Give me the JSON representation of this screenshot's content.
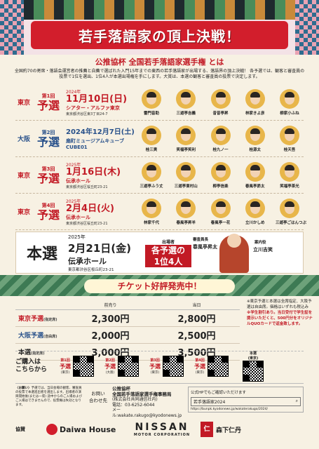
{
  "header": {
    "title": "若手落語家の頂上決戦！"
  },
  "intro": {
    "heading": "公推協杯 全国若手落語家選手権 とは",
    "body": "全国約70の寄席・落語会運営者の推薦と自薦で選ばれた入門15年までの東西の若手落語家が出場する、落語界の頂上決戦！ 各予選では、観客と審査員の投票で1位を選出、1位4人が本選出場権を手にします。大賞は、本選の観客と審査員の投票で決定します。"
  },
  "prelims": [
    {
      "region": "東京",
      "num": "第1回",
      "label": "予選",
      "year": "2024年",
      "date": "11月10日(日)",
      "venue": "シアター・アルファ東京",
      "addr": "東京都渋谷区東3丁目24-7",
      "players": [
        "雷門音助",
        "三遊亭吉義",
        "昔昔亭昇",
        "林家きよ彦",
        "柳家小ふね"
      ]
    },
    {
      "region": "大阪",
      "num": "第2回",
      "label": "予選",
      "year": "",
      "date": "2024年12月7日(土)",
      "venue": "扇町ミュージアムキューブ CUBE01",
      "addr": "",
      "players": [
        "桂三実",
        "笑福亭笑利",
        "桂九ノ一",
        "桂源太",
        "桂天吾"
      ]
    },
    {
      "region": "東京",
      "num": "第3回",
      "label": "予選",
      "year": "2025年",
      "date": "1月16日(木)",
      "venue": "伝承ホール",
      "addr": "東京都渋谷区桜丘町23-21",
      "players": [
        "三遊亭ふう丈",
        "三遊亭東村山",
        "柳亭信楽",
        "春風亭昴太",
        "笑福亭茶光"
      ]
    },
    {
      "region": "東京",
      "num": "第4回",
      "label": "予選",
      "year": "2025年",
      "date": "2月4日(火)",
      "venue": "伝承ホール",
      "addr": "東京都渋谷区桜丘町23-21",
      "players": [
        "林家千代",
        "春風亭昇羊",
        "春風亭一花",
        "立川かしめ",
        "三遊亭ごはんつぶ"
      ]
    }
  ],
  "final": {
    "label": "本選",
    "year": "2025年",
    "date": "2月21日(金)",
    "venue": "伝承ホール",
    "addr": "東京都渋谷区桜丘町23-21",
    "lead_caption": "出場者",
    "lead_highlight_1": "各予選の",
    "lead_highlight_2": "1位4人",
    "judge_label": "審査員長",
    "judge_name": "春風亭昇太",
    "host_label": "案内役",
    "host_name": "立川吉笑"
  },
  "ticket": {
    "heading": "チケット好評発売中！",
    "col_advance": "前売り",
    "col_door": "当日",
    "rows": [
      {
        "label": "東京予選",
        "sub": "(指定席)",
        "advance": "2,300円",
        "door": "2,800円"
      },
      {
        "label": "大阪予選",
        "sub": "(自由席)",
        "advance": "2,000円",
        "door": "2,500円"
      },
      {
        "label": "本選",
        "sub": "(指定席)",
        "advance": "3,000円",
        "door": "3,500円"
      }
    ],
    "note1": "※東京予選と本選は全席指定、大阪予選は自由席。価格はいずれも税込み",
    "note2": "※学生割引あり。当日受付で学生証を提示いただくと、500円分をオリジナルQUOカードで返金致します。"
  },
  "purchase": {
    "label_1": "ご購入は",
    "label_2": "こちらから",
    "qrs": [
      {
        "num": "第1回",
        "label": "予選",
        "region": "(東京)"
      },
      {
        "num": "第2回",
        "label": "予選",
        "region": "(大阪)"
      },
      {
        "num": "第3回",
        "label": "予選",
        "region": "(東京)"
      },
      {
        "num": "第4回",
        "label": "予選",
        "region": "(東京)"
      }
    ],
    "final_label": "本選",
    "final_region": "(東京)"
  },
  "footer": {
    "caution_title": "〈お願い〉",
    "caution": "予選では、当日会場の観客、審査員の投票で本選進出者を選出します。出場者の演目開始後(または一席) 途中からのご入場およびご入場はできませんので、投票権は失効となります。",
    "inquiry_1": "お問い",
    "inquiry_2": "合わせ先",
    "org_name": "公推協杯",
    "org_line2": "全国若手落語家選手権事務局",
    "org_line3": "(株式会社共同通信社内)",
    "org_tel": "電話：03-6252-6044",
    "org_mail": "メール:wakate.rakugo@kyodonews.jp",
    "hp_caption": "公式HPでもご確認いただけます",
    "hp_search": "若手落語家2024",
    "hp_url": "https://bunpk.kyodonews.jp/wakaterakugo/2024/"
  },
  "sponsors": {
    "label": "協賛",
    "daiwa": "Daiwa House",
    "nissan_1": "NISSAN",
    "nissan_2": "MOTOR CORPORATION",
    "jintan": "森下仁丹",
    "jintan_mark": "仁"
  }
}
